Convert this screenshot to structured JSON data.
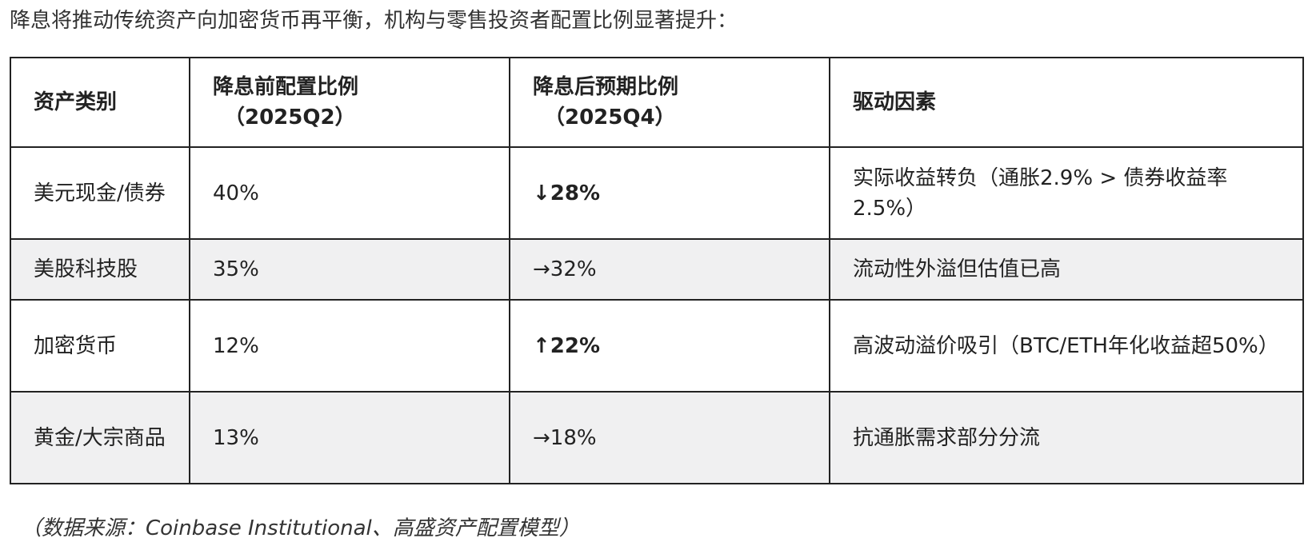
{
  "intro": "降息将推动传统资产向加密货币再平衡，机构与零售投资者配置比例显著提升：",
  "table": {
    "headers": {
      "category": "资产类别",
      "before_line1": "降息前配置比例",
      "before_line2": "（2025Q2）",
      "after_line1": "降息后预期比例",
      "after_line2": "（2025Q4）",
      "drivers": "驱动因素"
    },
    "rows": [
      {
        "category": "美元现金/债券",
        "before": "40%",
        "after": "↓28%",
        "after_bold": true,
        "driver": "实际收益转负（通胀2.9% > 债券收益率2.5%）"
      },
      {
        "category": "美股科技股",
        "before": "35%",
        "after": "→32%",
        "after_bold": false,
        "driver": "流动性外溢但估值已高"
      },
      {
        "category": "加密货币",
        "before": "12%",
        "after": "↑22%",
        "after_bold": true,
        "driver": "高波动溢价吸引（BTC/ETH年化收益超50%）"
      },
      {
        "category": "黄金/大宗商品",
        "before": "13%",
        "after": "→18%",
        "after_bold": false,
        "driver": "抗通胀需求部分分流"
      }
    ]
  },
  "source_note": "（数据来源：Coinbase Institutional、高盛资产配置模型）"
}
